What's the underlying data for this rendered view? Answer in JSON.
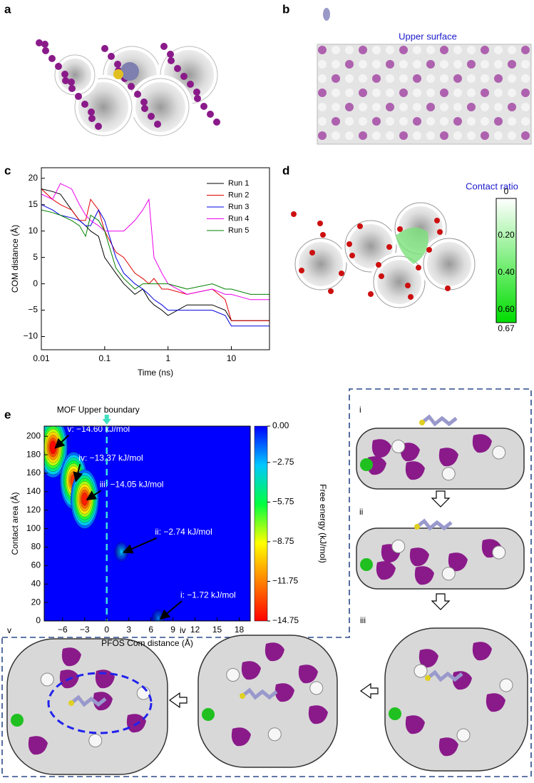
{
  "figure": {
    "panels": [
      "a",
      "b",
      "c",
      "d",
      "e"
    ],
    "upper_surface": "Upper surface",
    "contact_ratio": {
      "title": "Contact ratio",
      "lim": [
        0,
        0.67
      ],
      "ticks": [
        0,
        {
          "value": 0.2,
          "label": "0.20"
        },
        {
          "value": 0.4,
          "label": "0.40"
        },
        {
          "value": 0.6,
          "label": "0.60"
        },
        0.67
      ],
      "colors": [
        "#ffffff",
        "#00dd00"
      ]
    },
    "snapshots": [
      "i",
      "ii",
      "iii",
      "iv",
      "v"
    ]
  },
  "chart_data": [
    {
      "type": "line",
      "xlabel": "Time (ns)",
      "ylabel": "COM distance (Å)",
      "log_x": true,
      "legend": "upper right",
      "xlim": [
        0.01,
        40
      ],
      "xticks": [
        0.01,
        0.1,
        1,
        10
      ],
      "ylim": [
        -12.5,
        22
      ],
      "yticks": [
        {
          "value": -10,
          "label": "−10"
        },
        {
          "value": -5,
          "label": "−5"
        },
        0,
        5,
        10,
        15,
        20
      ],
      "x": [
        0.01,
        0.015,
        0.02,
        0.03,
        0.04,
        0.05,
        0.06,
        0.08,
        0.1,
        0.15,
        0.2,
        0.3,
        0.4,
        0.5,
        0.6,
        0.8,
        1,
        2,
        5,
        8,
        10,
        20,
        40
      ],
      "series": [
        {
          "name": "Run 1",
          "color": "#000000",
          "values": [
            18,
            17.5,
            17,
            14,
            12,
            11,
            10,
            9,
            5,
            2,
            0,
            -2,
            -1,
            -3,
            -4,
            -5,
            -6,
            -4,
            -4,
            -5,
            -7,
            -7,
            -7
          ]
        },
        {
          "name": "Run 2",
          "color": "#e00000",
          "values": [
            18,
            16,
            15,
            14,
            12,
            12,
            16,
            14,
            10,
            6,
            5,
            2,
            1,
            0,
            1,
            -1,
            -1,
            -2,
            -1,
            -3,
            -7,
            -7,
            -7
          ]
        },
        {
          "name": "Run 3",
          "color": "#0000e0",
          "values": [
            15,
            14,
            13,
            12.5,
            12,
            11,
            11,
            14,
            12,
            5,
            2,
            0,
            -1,
            -2,
            -3,
            -4,
            -5,
            -5,
            -5,
            -6,
            -8,
            -8,
            -8
          ]
        },
        {
          "name": "Run 4",
          "color": "#ee00ee",
          "values": [
            17,
            16,
            19,
            18,
            15,
            13,
            12,
            11,
            10,
            10,
            10,
            12,
            14,
            16,
            5,
            2,
            0,
            -2,
            -1,
            -2,
            -2,
            -3,
            -3
          ]
        },
        {
          "name": "Run 5",
          "color": "#008000",
          "values": [
            14,
            13.5,
            13,
            12,
            11,
            9,
            13,
            12,
            10,
            3,
            1,
            -1,
            0,
            0,
            0,
            0,
            0,
            -1,
            0,
            -1,
            -1,
            -2,
            -2
          ]
        }
      ]
    },
    {
      "type": "contour",
      "xlabel": "PFOS Com distance (Å)",
      "ylabel": "Contact area (Å)",
      "annotation": "MOF Upper boundary",
      "boundary_x": 0,
      "xlim": [
        -8.5,
        19.5
      ],
      "xticks": [
        {
          "value": -6,
          "label": "−6"
        },
        {
          "value": -3,
          "label": "−3"
        },
        0,
        3,
        6,
        9,
        12,
        15,
        18
      ],
      "ylim": [
        0,
        211
      ],
      "yticks": [
        0,
        20,
        40,
        60,
        80,
        100,
        120,
        140,
        160,
        180,
        200
      ],
      "colorbar": {
        "label": "Free energy (kJ/mol)",
        "lim": [
          0,
          -14.75
        ],
        "ticks": [
          {
            "value": 0,
            "label": "0.00"
          },
          {
            "value": -2.75,
            "label": "−2.75"
          },
          {
            "value": -5.75,
            "label": "−5.75"
          },
          {
            "value": -8.75,
            "label": "−8.75"
          },
          {
            "value": -11.75,
            "label": "−11.75"
          },
          {
            "value": -14.75,
            "label": "−14.75"
          }
        ],
        "colors": [
          "#0000ff",
          "#00c8ff",
          "#00ff40",
          "#ffff00",
          "#ff8000",
          "#ff0000"
        ]
      },
      "minima": [
        {
          "x": -7.3,
          "y": 188,
          "value": -14.6,
          "label": "v: −14.60 kJ/mol"
        },
        {
          "x": -4.5,
          "y": 152,
          "value": -13.37,
          "label": "iv: −13.37 kJ/mol"
        },
        {
          "x": -3,
          "y": 132,
          "value": -14.05,
          "label": "iii: −14.05 kJ/mol"
        },
        {
          "x": 2,
          "y": 75,
          "value": -2.74,
          "label": "ii: −2.74 kJ/mol"
        },
        {
          "x": 7,
          "y": 3,
          "value": -1.72,
          "label": "i: −1.72 kJ/mol"
        }
      ]
    }
  ]
}
